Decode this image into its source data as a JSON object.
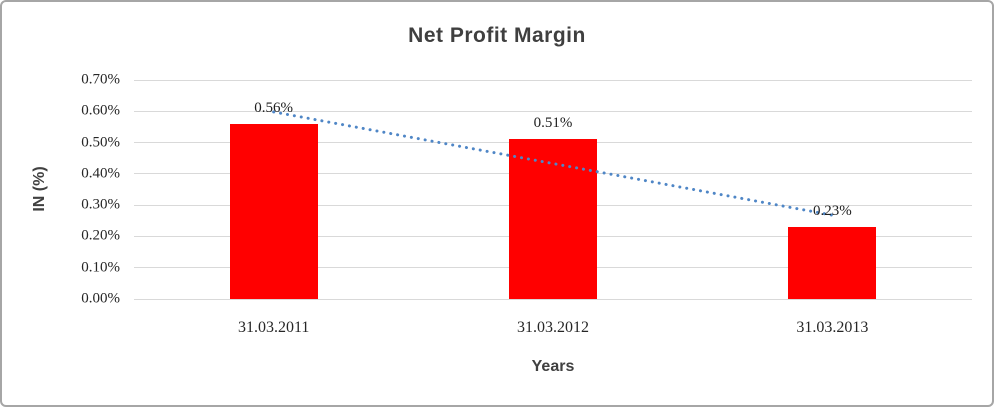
{
  "chart_data": {
    "type": "bar",
    "title": "Net Profit Margin",
    "xlabel": "Years",
    "ylabel": "IN (%)",
    "categories": [
      "31.03.2011",
      "31.03.2012",
      "31.03.2013"
    ],
    "values": [
      0.56,
      0.51,
      0.23
    ],
    "data_labels": [
      "0.56%",
      "0.51%",
      "0.23%"
    ],
    "ylim": [
      0,
      0.7
    ],
    "ytick_step": 0.1,
    "ytick_labels": [
      "0.00%",
      "0.10%",
      "0.20%",
      "0.30%",
      "0.40%",
      "0.50%",
      "0.60%",
      "0.70%"
    ],
    "grid": true,
    "legend": "none",
    "bar_color": "#ff0000",
    "grid_color": "#d9d9d9",
    "trendline": {
      "type": "linear",
      "style": "dotted",
      "color": "#4f86c6",
      "start_value": 0.598,
      "end_value": 0.268
    }
  }
}
